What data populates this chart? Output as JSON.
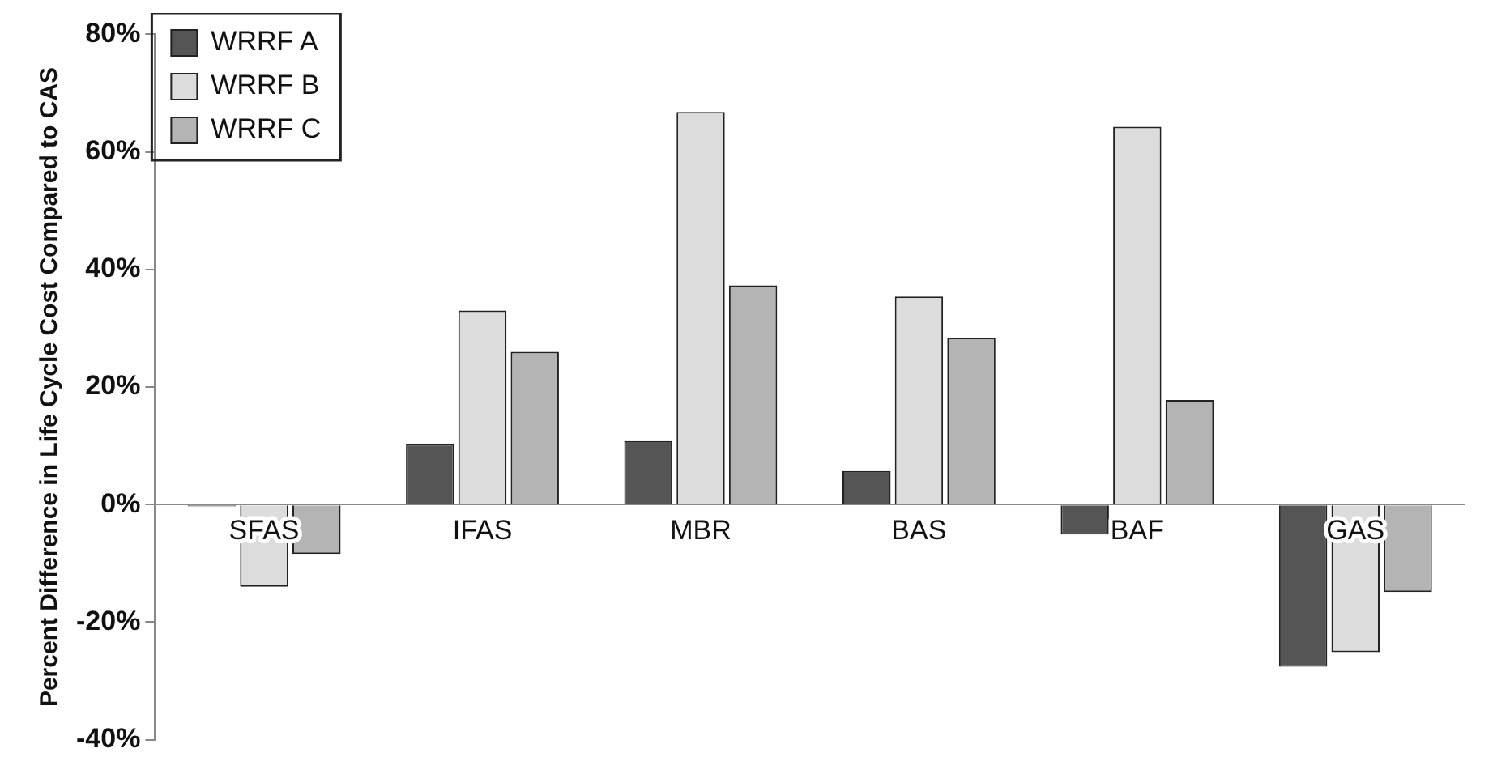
{
  "chart_data": {
    "type": "bar",
    "ylabel": "Percent Difference in Life Cycle Cost Compared to CAS",
    "categories": [
      "SFAS",
      "IFAS",
      "MBR",
      "BAS",
      "BAF",
      "GAS"
    ],
    "series": [
      {
        "name": "WRRF A",
        "color": "#555555",
        "values": [
          -0.3,
          10.3,
          10.8,
          5.7,
          -5.1,
          -27.6
        ]
      },
      {
        "name": "WRRF B",
        "color": "#dcdcdc",
        "values": [
          -14,
          33,
          66.8,
          35.4,
          64.3,
          -25.1
        ]
      },
      {
        "name": "WRRF C",
        "color": "#b4b4b4",
        "values": [
          -8.4,
          26,
          37.3,
          28.4,
          17.8,
          -14.9
        ]
      }
    ],
    "ylim": [
      -40,
      80
    ],
    "yticks": [
      {
        "value": -40,
        "label": "-40%"
      },
      {
        "value": -20,
        "label": "-20%"
      },
      {
        "value": 0,
        "label": "0%"
      },
      {
        "value": 20,
        "label": "20%"
      },
      {
        "value": 40,
        "label": "40%"
      },
      {
        "value": 60,
        "label": "60%"
      },
      {
        "value": 80,
        "label": "80%"
      }
    ],
    "grid": false,
    "legend": "top left"
  }
}
